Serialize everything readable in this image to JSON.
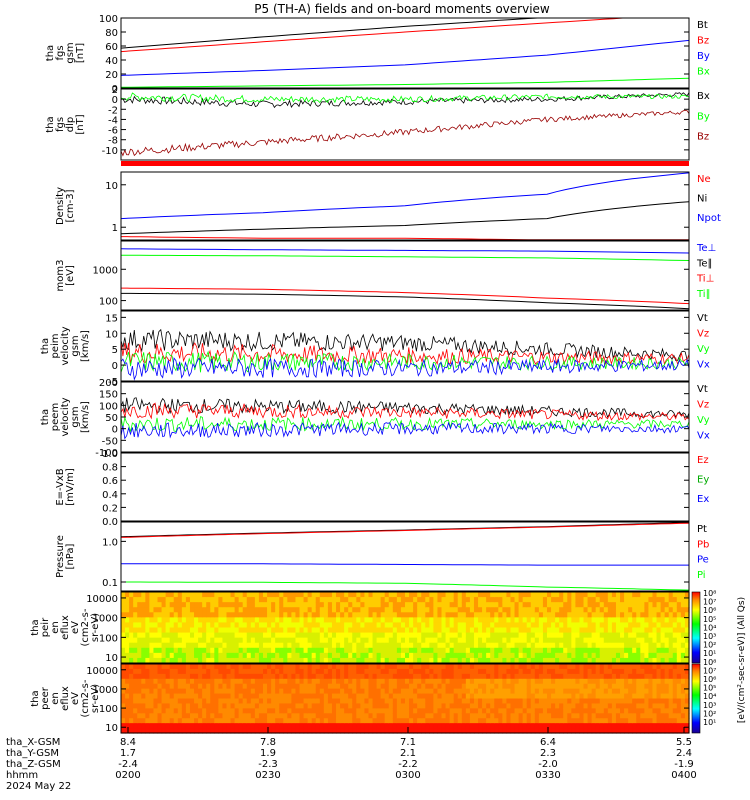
{
  "title": "P5 (TH-A) fields and on-board moments overview",
  "colors": {
    "black": "#000000",
    "red": "#ff0000",
    "darkred": "#990000",
    "blue": "#0000ff",
    "green": "#00ff00"
  },
  "chart_data": [
    {
      "type": "line",
      "id": "fgs_mag",
      "ylabel": [
        "tha",
        "fgs",
        "gsm",
        "[nT]"
      ],
      "ylim": [
        0,
        100
      ],
      "yticks": [
        "0",
        "20",
        "40",
        "60",
        "80",
        "100"
      ],
      "legend": [
        "Bt",
        "Bz",
        "By",
        "Bx"
      ],
      "series": [
        {
          "name": "Bt",
          "color": "#000000",
          "x": [
            0,
            0.25,
            0.5,
            0.75,
            1
          ],
          "values": [
            57,
            73,
            88,
            101,
            113
          ]
        },
        {
          "name": "Bz",
          "color": "#ff0000",
          "x": [
            0,
            0.25,
            0.5,
            0.75,
            1
          ],
          "values": [
            52,
            66,
            80,
            93,
            106
          ]
        },
        {
          "name": "By",
          "color": "#0000ff",
          "x": [
            0,
            0.25,
            0.5,
            0.75,
            1
          ],
          "values": [
            18,
            25,
            33,
            47,
            68
          ]
        },
        {
          "name": "Bx",
          "color": "#00ff00",
          "x": [
            0,
            0.25,
            0.5,
            0.75,
            1
          ],
          "values": [
            1,
            3,
            5,
            8,
            14
          ]
        }
      ]
    },
    {
      "type": "line",
      "id": "fgs_dlp",
      "ylabel": [
        "tha",
        "fgs",
        "dlp",
        "[nT]"
      ],
      "ylim": [
        -12,
        2
      ],
      "yticks": [
        "2",
        "0",
        "-2",
        "-4",
        "-6",
        "-8",
        "-10"
      ],
      "legend": [
        "Bx",
        "By",
        "Bz"
      ],
      "series": [
        {
          "name": "Bx",
          "color": "#000000",
          "x": [
            0,
            0.25,
            0.5,
            0.75,
            1
          ],
          "values": [
            0,
            -1,
            -0.5,
            0,
            1
          ]
        },
        {
          "name": "By",
          "color": "#00ff00",
          "x": [
            0,
            0.25,
            0.5,
            0.75,
            1
          ],
          "values": [
            0.5,
            0,
            0,
            0.5,
            0.5
          ]
        },
        {
          "name": "Bz",
          "color": "#990000",
          "x": [
            0,
            0.25,
            0.5,
            0.75,
            1
          ],
          "values": [
            -10.5,
            -8.5,
            -6.5,
            -4,
            -2.5
          ]
        }
      ]
    },
    {
      "type": "line",
      "id": "density",
      "ylabel": [
        "Density",
        "[cm-3]"
      ],
      "yscale": "log",
      "ylim": [
        0.5,
        20
      ],
      "yticks": [
        "10",
        "1"
      ],
      "legend": [
        "Ne",
        "Ni",
        "Npot"
      ],
      "series": [
        {
          "name": "Ne",
          "color": "#ff0000",
          "x": [
            0,
            0.25,
            0.5,
            0.75,
            1
          ],
          "values": [
            0.6,
            0.55,
            0.55,
            0.5,
            0.45
          ]
        },
        {
          "name": "Ni",
          "color": "#000000",
          "x": [
            0,
            0.25,
            0.5,
            0.75,
            1
          ],
          "values": [
            0.7,
            0.9,
            1.1,
            1.6,
            4.0
          ]
        },
        {
          "name": "Npot",
          "color": "#0000ff",
          "x": [
            0,
            0.25,
            0.5,
            0.75,
            1
          ],
          "values": [
            1.6,
            2.2,
            3.2,
            6,
            19
          ]
        }
      ]
    },
    {
      "type": "line",
      "id": "temp",
      "ylabel": [
        "mom3",
        "[eV]"
      ],
      "yscale": "log",
      "ylim": [
        50,
        8000
      ],
      "yticks": [
        "1000",
        "100"
      ],
      "legend": [
        "Te⊥",
        "Te∥",
        "Ti⊥",
        "Ti∥"
      ],
      "series": [
        {
          "name": "Te⊥",
          "color": "#0000ff",
          "x": [
            0,
            0.25,
            0.5,
            0.75,
            1
          ],
          "values": [
            4500,
            4200,
            4000,
            3800,
            3300
          ]
        },
        {
          "name": "Ti∥",
          "color": "#00ff00",
          "x": [
            0,
            0.25,
            0.5,
            0.75,
            1
          ],
          "values": [
            2800,
            2700,
            2500,
            2300,
            1900
          ]
        },
        {
          "name": "Ti⊥",
          "color": "#ff0000",
          "x": [
            0,
            0.25,
            0.5,
            0.75,
            1
          ],
          "values": [
            250,
            230,
            180,
            120,
            80
          ]
        },
        {
          "name": "Te∥",
          "color": "#000000",
          "x": [
            0,
            0.25,
            0.5,
            0.75,
            1
          ],
          "values": [
            170,
            160,
            130,
            85,
            55
          ]
        }
      ]
    },
    {
      "type": "line",
      "id": "peim_vel",
      "ylabel": [
        "tha",
        "peim",
        "velocity",
        "gsm",
        "[km/s]"
      ],
      "ylim": [
        -5,
        17
      ],
      "yticks": [
        "15",
        "10",
        "5",
        "0",
        "-5"
      ],
      "legend": [
        "Vt",
        "Vz",
        "Vy",
        "Vx"
      ],
      "series": [
        {
          "name": "Vt",
          "color": "#000000",
          "x": [
            0,
            0.5,
            1
          ],
          "values": [
            8,
            7,
            3
          ]
        },
        {
          "name": "Vz",
          "color": "#ff0000",
          "x": [
            0,
            0.5,
            1
          ],
          "values": [
            4,
            3,
            2
          ]
        },
        {
          "name": "Vy",
          "color": "#00ff00",
          "x": [
            0,
            0.5,
            1
          ],
          "values": [
            1,
            1,
            0.5
          ]
        },
        {
          "name": "Vx",
          "color": "#0000ff",
          "x": [
            0,
            0.5,
            1
          ],
          "values": [
            -1,
            -1,
            0
          ]
        }
      ]
    },
    {
      "type": "line",
      "id": "peem_vel",
      "ylabel": [
        "tha",
        "peem",
        "velocity",
        "gsm",
        "[km/s]"
      ],
      "ylim": [
        -100,
        200
      ],
      "yticks": [
        "200",
        "150",
        "100",
        "50",
        "0",
        "-50",
        "-100"
      ],
      "legend": [
        "Vt",
        "Vz",
        "Vy",
        "Vx"
      ],
      "series": [
        {
          "name": "Vt",
          "color": "#000000",
          "x": [
            0,
            0.5,
            1
          ],
          "values": [
            100,
            90,
            60
          ]
        },
        {
          "name": "Vz",
          "color": "#ff0000",
          "x": [
            0,
            0.5,
            1
          ],
          "values": [
            80,
            70,
            50
          ]
        },
        {
          "name": "Vy",
          "color": "#00ff00",
          "x": [
            0,
            0.5,
            1
          ],
          "values": [
            20,
            20,
            20
          ]
        },
        {
          "name": "Vx",
          "color": "#0000ff",
          "x": [
            0,
            0.5,
            1
          ],
          "values": [
            -10,
            0,
            0
          ]
        }
      ]
    },
    {
      "type": "line",
      "id": "efield",
      "ylabel": [
        "E=-VxB",
        "[mV/m]"
      ],
      "ylim": [
        0,
        1
      ],
      "yticks": [
        "1.0",
        "0.8",
        "0.6",
        "0.4",
        "0.2",
        "0.0"
      ],
      "legend": [
        "Ez",
        "Ey",
        "Ex"
      ],
      "series": []
    },
    {
      "type": "line",
      "id": "pressure",
      "ylabel": [
        "Pressure",
        "[nPa]"
      ],
      "yscale": "log",
      "ylim": [
        0.06,
        3
      ],
      "yticks": [
        "1.0",
        "0.1"
      ],
      "legend": [
        "Pt",
        "Pb",
        "Pe",
        "Pi"
      ],
      "series": [
        {
          "name": "Pt",
          "color": "#000000",
          "x": [
            0,
            0.25,
            0.5,
            0.75,
            1
          ],
          "values": [
            1.3,
            1.6,
            1.9,
            2.3,
            2.9
          ]
        },
        {
          "name": "Pb",
          "color": "#ff0000",
          "x": [
            0,
            0.25,
            0.5,
            0.75,
            1
          ],
          "values": [
            1.25,
            1.55,
            1.85,
            2.25,
            2.8
          ]
        },
        {
          "name": "Pe",
          "color": "#0000ff",
          "x": [
            0,
            0.25,
            0.5,
            0.75,
            1
          ],
          "values": [
            0.28,
            0.28,
            0.27,
            0.26,
            0.26
          ]
        },
        {
          "name": "Pi",
          "color": "#00ff00",
          "x": [
            0,
            0.25,
            0.5,
            0.75,
            1
          ],
          "values": [
            0.1,
            0.098,
            0.093,
            0.075,
            0.063
          ]
        }
      ]
    },
    {
      "type": "heatmap",
      "id": "peir_en",
      "ylabel": [
        "tha",
        "peir",
        "en",
        "eflux",
        "eV",
        "(cm2-s-",
        "sr-eV)"
      ],
      "yscale": "log",
      "ylim": [
        5,
        20000
      ],
      "yticks": [
        "10000",
        "1000",
        "100",
        "10"
      ]
    },
    {
      "type": "heatmap",
      "id": "peer_en",
      "ylabel": [
        "tha",
        "peer",
        "en",
        "eflux",
        "eV",
        "(cm2-s-",
        "sr-eV)"
      ],
      "yscale": "log",
      "ylim": [
        5,
        20000
      ],
      "yticks": [
        "10000",
        "1000",
        "100",
        "10"
      ]
    }
  ],
  "colorbar": {
    "ticks": [
      "10⁸",
      "10⁷",
      "10⁶",
      "10⁵",
      "10⁴",
      "10³",
      "10²",
      "10¹",
      "10⁸",
      "10⁷",
      "10⁶",
      "10⁵",
      "10⁴",
      "10³",
      "10²",
      "10¹"
    ],
    "label": "[eV/(cm²-sec-sr-eV)] (All Qs)"
  },
  "footer": {
    "rows": [
      {
        "label": "tha_X-GSM",
        "values": [
          "8.4",
          "7.8",
          "7.1",
          "6.4",
          "5.5"
        ]
      },
      {
        "label": "tha_Y-GSM",
        "values": [
          "1.7",
          "1.9",
          "2.1",
          "2.3",
          "2.4"
        ]
      },
      {
        "label": "tha_Z-GSM",
        "values": [
          "-2.4",
          "-2.3",
          "-2.2",
          "-2.0",
          "-1.9"
        ]
      },
      {
        "label": "hhmm",
        "values": [
          "0200",
          "0230",
          "0300",
          "0330",
          "0400"
        ]
      }
    ],
    "date": "2024 May 22"
  }
}
